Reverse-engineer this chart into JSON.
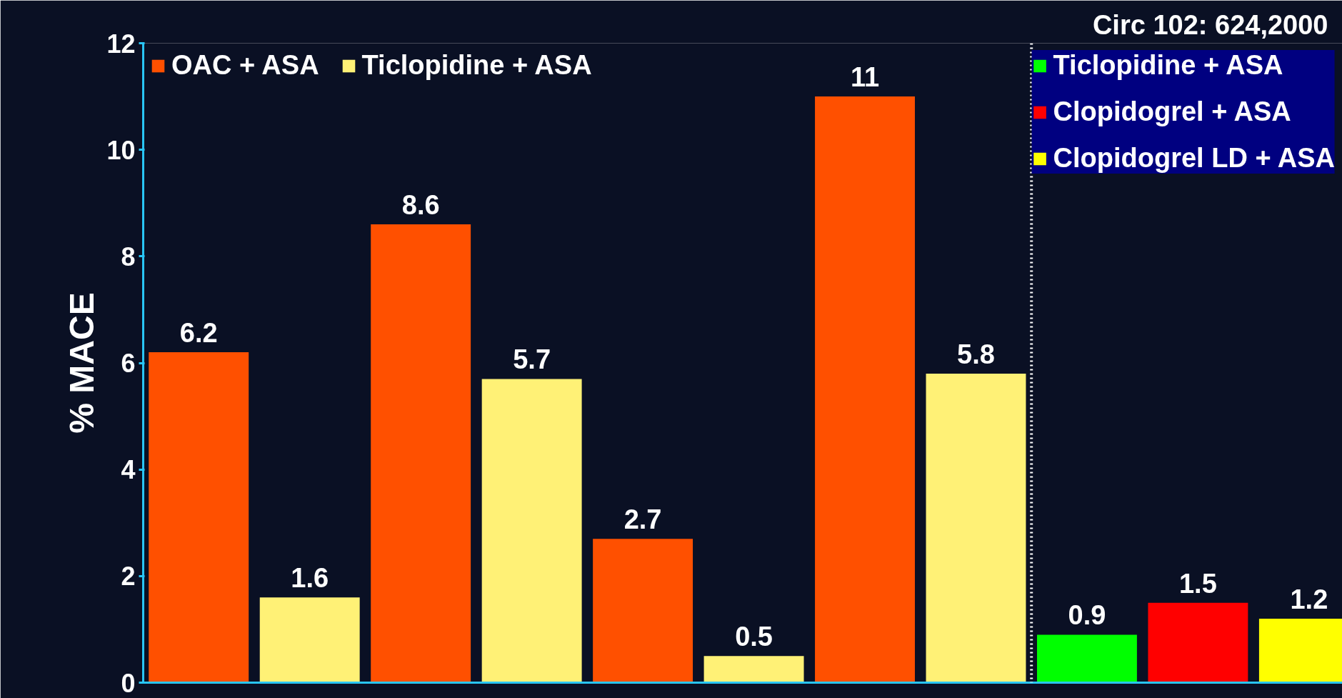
{
  "chart_data": {
    "type": "bar",
    "ylabel": "% MACE",
    "categories": [
      null,
      null,
      null,
      null,
      null,
      null,
      null,
      null,
      null,
      null,
      null
    ],
    "series": [
      {
        "name": "OAC + ASA",
        "color": "#ff5000",
        "values": [
          6.2,
          null,
          8.6,
          null,
          2.7,
          null,
          11,
          null,
          null,
          null,
          null
        ]
      },
      {
        "name": "Ticlopidine + ASA",
        "color": "#fff176",
        "values": [
          null,
          1.6,
          null,
          5.7,
          null,
          0.5,
          null,
          5.8,
          null,
          null,
          null
        ]
      },
      {
        "name": "Ticlopidine + ASA",
        "color": "#00ff00",
        "values": [
          null,
          null,
          null,
          null,
          null,
          null,
          null,
          null,
          0.9,
          null,
          null
        ]
      },
      {
        "name": "Clopidogrel + ASA",
        "color": "#ff0000",
        "values": [
          null,
          null,
          null,
          null,
          null,
          null,
          null,
          null,
          null,
          1.5,
          null
        ]
      },
      {
        "name": "Clopidogrel LD + ASA",
        "color": "#ffff00",
        "values": [
          null,
          null,
          null,
          null,
          null,
          null,
          null,
          null,
          null,
          null,
          1.2
        ]
      }
    ],
    "ylim": [
      0,
      12
    ],
    "yticks": [
      0,
      2,
      4,
      6,
      8,
      10,
      12
    ],
    "data_labels": true,
    "legend": "top left",
    "grid": false,
    "annotations": [
      "Circ 102: 624,2000"
    ]
  }
}
